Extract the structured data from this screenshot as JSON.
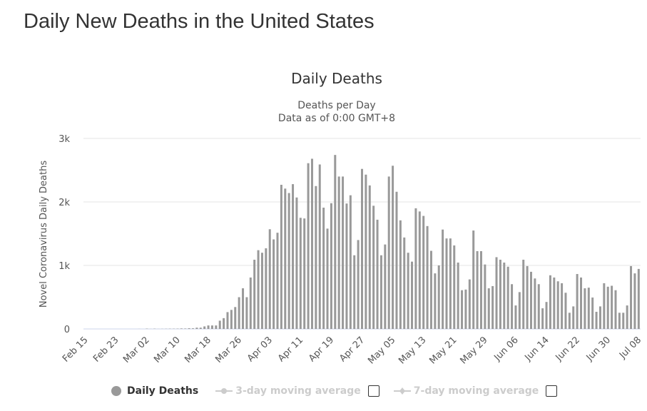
{
  "page_title": "Daily New Deaths in the United States",
  "chart_data": {
    "type": "bar",
    "title": "Daily Deaths",
    "subtitle_lines": [
      "Deaths per Day",
      "Data as of 0:00 GMT+8"
    ],
    "ylabel": "Novel Coronavirus Daily Deaths",
    "ylim": [
      0,
      3000
    ],
    "yticks": [
      "0",
      "1k",
      "2k",
      "3k"
    ],
    "grid": true,
    "bar_color": "#999999",
    "xticks": [
      "Feb 15",
      "Feb 23",
      "Mar 02",
      "Mar 10",
      "Mar 18",
      "Mar 26",
      "Apr 03",
      "Apr 11",
      "Apr 19",
      "Apr 27",
      "May 05",
      "May 13",
      "May 21",
      "May 29",
      "Jun 06",
      "Jun 14",
      "Jun 22",
      "Jun 30",
      "Jul 08"
    ],
    "categories": [
      "Feb 15",
      "Feb 16",
      "Feb 17",
      "Feb 18",
      "Feb 19",
      "Feb 20",
      "Feb 21",
      "Feb 22",
      "Feb 23",
      "Feb 24",
      "Feb 25",
      "Feb 26",
      "Feb 27",
      "Feb 28",
      "Feb 29",
      "Mar 01",
      "Mar 02",
      "Mar 03",
      "Mar 04",
      "Mar 05",
      "Mar 06",
      "Mar 07",
      "Mar 08",
      "Mar 09",
      "Mar 10",
      "Mar 11",
      "Mar 12",
      "Mar 13",
      "Mar 14",
      "Mar 15",
      "Mar 16",
      "Mar 17",
      "Mar 18",
      "Mar 19",
      "Mar 20",
      "Mar 21",
      "Mar 22",
      "Mar 23",
      "Mar 24",
      "Mar 25",
      "Mar 26",
      "Mar 27",
      "Mar 28",
      "Mar 29",
      "Mar 30",
      "Mar 31",
      "Apr 01",
      "Apr 02",
      "Apr 03",
      "Apr 04",
      "Apr 05",
      "Apr 06",
      "Apr 07",
      "Apr 08",
      "Apr 09",
      "Apr 10",
      "Apr 11",
      "Apr 12",
      "Apr 13",
      "Apr 14",
      "Apr 15",
      "Apr 16",
      "Apr 17",
      "Apr 18",
      "Apr 19",
      "Apr 20",
      "Apr 21",
      "Apr 22",
      "Apr 23",
      "Apr 24",
      "Apr 25",
      "Apr 26",
      "Apr 27",
      "Apr 28",
      "Apr 29",
      "Apr 30",
      "May 01",
      "May 02",
      "May 03",
      "May 04",
      "May 05",
      "May 06",
      "May 07",
      "May 08",
      "May 09",
      "May 10",
      "May 11",
      "May 12",
      "May 13",
      "May 14",
      "May 15",
      "May 16",
      "May 17",
      "May 18",
      "May 19",
      "May 20",
      "May 21",
      "May 22",
      "May 23",
      "May 24",
      "May 25",
      "May 26",
      "May 27",
      "May 28",
      "May 29",
      "May 30",
      "May 31",
      "Jun 01",
      "Jun 02",
      "Jun 03",
      "Jun 04",
      "Jun 05",
      "Jun 06",
      "Jun 07",
      "Jun 08",
      "Jun 09",
      "Jun 10",
      "Jun 11",
      "Jun 12",
      "Jun 13",
      "Jun 14",
      "Jun 15",
      "Jun 16",
      "Jun 17",
      "Jun 18",
      "Jun 19",
      "Jun 20",
      "Jun 21",
      "Jun 22",
      "Jun 23",
      "Jun 24",
      "Jun 25",
      "Jun 26",
      "Jun 27",
      "Jun 28",
      "Jun 29",
      "Jun 30",
      "Jul 01",
      "Jul 02",
      "Jul 03",
      "Jul 04",
      "Jul 05",
      "Jul 06",
      "Jul 07",
      "Jul 08"
    ],
    "values": [
      0,
      0,
      0,
      0,
      0,
      0,
      0,
      0,
      0,
      0,
      0,
      0,
      0,
      0,
      1,
      0,
      5,
      1,
      4,
      1,
      2,
      3,
      4,
      4,
      5,
      8,
      7,
      11,
      10,
      20,
      20,
      40,
      55,
      55,
      55,
      130,
      170,
      265,
      300,
      345,
      500,
      640,
      500,
      810,
      1090,
      1240,
      1200,
      1270,
      1570,
      1410,
      1515,
      2270,
      2210,
      2140,
      2280,
      2070,
      1750,
      1740,
      2610,
      2680,
      2250,
      2590,
      1910,
      1580,
      1980,
      2740,
      2400,
      2400,
      1975,
      2105,
      1160,
      1400,
      2520,
      2430,
      2260,
      1940,
      1720,
      1160,
      1330,
      2400,
      2570,
      2160,
      1710,
      1440,
      1200,
      1060,
      1900,
      1850,
      1780,
      1620,
      1230,
      875,
      1000,
      1565,
      1425,
      1425,
      1315,
      1045,
      610,
      620,
      780,
      1550,
      1225,
      1225,
      1015,
      640,
      675,
      1130,
      1090,
      1045,
      980,
      705,
      370,
      580,
      1090,
      990,
      900,
      795,
      705,
      325,
      425,
      845,
      810,
      750,
      720,
      570,
      255,
      355,
      865,
      810,
      640,
      650,
      495,
      270,
      355,
      720,
      665,
      680,
      610,
      255,
      255,
      370,
      990,
      875,
      945
    ],
    "legend": [
      {
        "label": "Daily Deaths",
        "color": "#999999",
        "active": true
      },
      {
        "label": "3-day moving average",
        "color": "#cccccc",
        "active": false,
        "checkbox": false
      },
      {
        "label": "7-day moving average",
        "color": "#cccccc",
        "active": false,
        "checkbox": false
      }
    ]
  }
}
